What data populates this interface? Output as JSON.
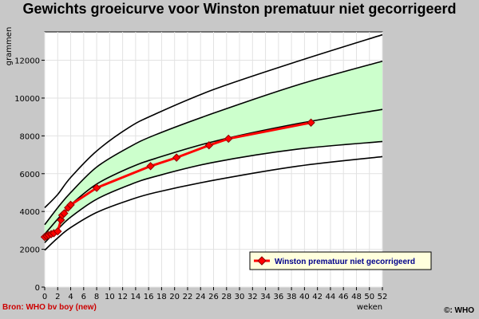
{
  "chart_data": {
    "type": "line",
    "title": "Gewichts groeicurve voor Winston prematuur niet gecorrigeerd",
    "xlabel": "weken",
    "ylabel": "grammen",
    "xlim": [
      0,
      52
    ],
    "ylim": [
      0,
      13500
    ],
    "x_ticks": [
      0,
      2,
      4,
      6,
      8,
      10,
      12,
      14,
      16,
      18,
      20,
      22,
      24,
      26,
      28,
      30,
      32,
      34,
      36,
      38,
      40,
      42,
      44,
      46,
      48,
      50,
      52
    ],
    "y_ticks": [
      0,
      2000,
      4000,
      6000,
      8000,
      10000,
      12000
    ],
    "grid": true,
    "legend_position": "bottom-right",
    "series": [
      {
        "name": "Winston prematuur niet gecorrigeerd",
        "color": "#ff0000",
        "x": [
          0,
          0.3,
          0.6,
          1,
          1.4,
          2,
          2.5,
          2.7,
          3,
          3.6,
          4,
          8,
          16.3,
          20.3,
          25.3,
          28.3,
          41
        ],
        "y": [
          2650,
          2700,
          2750,
          2800,
          2850,
          2950,
          3550,
          3800,
          3900,
          4200,
          4350,
          5250,
          6400,
          6850,
          7500,
          7850,
          8700
        ]
      }
    ],
    "reference_curves": [
      {
        "x": [
          0,
          2,
          4,
          8,
          13,
          17,
          26,
          39,
          52
        ],
        "y": [
          1950,
          2600,
          3150,
          3950,
          4600,
          5000,
          5650,
          6400,
          6900
        ]
      },
      {
        "x": [
          0,
          2,
          4,
          8,
          13,
          17,
          26,
          39,
          52
        ],
        "y": [
          2350,
          3050,
          3700,
          4650,
          5400,
          5850,
          6600,
          7300,
          7700
        ]
      },
      {
        "x": [
          0,
          2,
          4,
          8,
          13,
          17,
          26,
          39,
          52
        ],
        "y": [
          2800,
          3600,
          4350,
          5450,
          6300,
          6800,
          7700,
          8650,
          9400
        ]
      },
      {
        "x": [
          0,
          2,
          4,
          8,
          13,
          17,
          26,
          39,
          52
        ],
        "y": [
          3300,
          4200,
          5000,
          6350,
          7400,
          8050,
          9200,
          10700,
          11950
        ]
      },
      {
        "x": [
          0,
          2,
          4,
          8,
          13,
          17,
          26,
          39,
          52
        ],
        "y": [
          4200,
          4900,
          5800,
          7200,
          8450,
          9150,
          10450,
          11950,
          13350
        ]
      }
    ],
    "band": {
      "lower_curve": 1,
      "upper_curve": 3,
      "color": "#ccffcc"
    }
  },
  "footer": {
    "source": "Bron: WHO bv boy (new)",
    "copyright": "©: WHO"
  }
}
